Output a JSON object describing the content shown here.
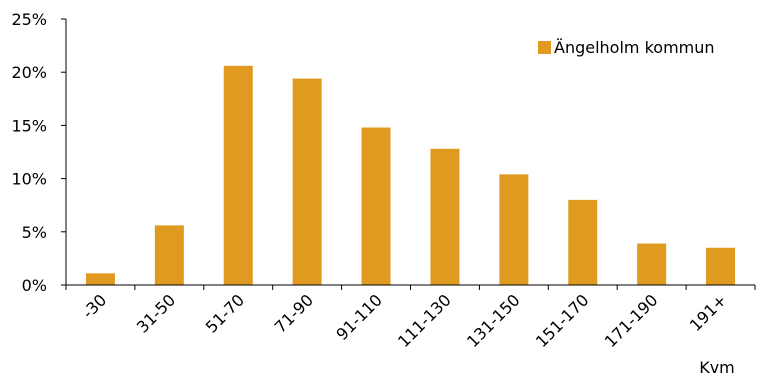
{
  "chart_data": {
    "type": "bar",
    "categories": [
      "-30",
      "31-50",
      "51-70",
      "71-90",
      "91-110",
      "111-130",
      "131-150",
      "151-170",
      "171-190",
      "191+"
    ],
    "series": [
      {
        "name": "Ängelholm kommun",
        "color": "#E09A1F",
        "values": [
          1.1,
          5.6,
          20.6,
          19.4,
          14.8,
          12.8,
          10.4,
          8.0,
          3.9,
          3.5
        ]
      }
    ],
    "y_ticks": [
      "0%",
      "5%",
      "10%",
      "15%",
      "20%",
      "25%"
    ],
    "ylim": [
      0,
      25
    ],
    "xlabel": "Kvm",
    "ylabel": "",
    "grid": false,
    "legend_position": "top-right"
  }
}
